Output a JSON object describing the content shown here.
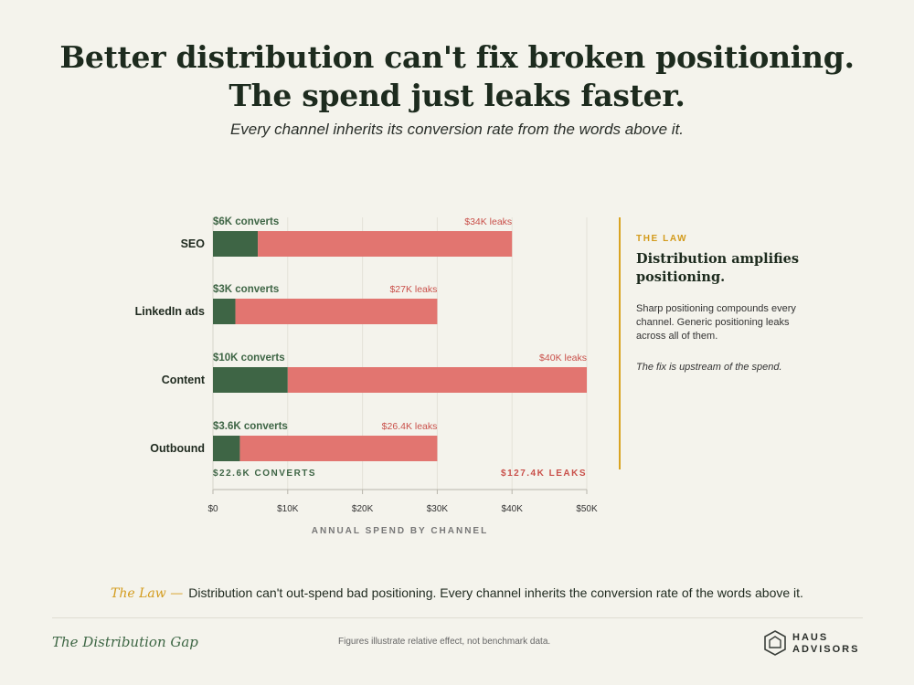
{
  "title_line1": "Better distribution can't fix broken positioning.",
  "title_line2": "The spend just leaks faster.",
  "subtitle": "Every channel inherits its conversion rate from the words above it.",
  "chart_data": {
    "type": "bar",
    "orientation": "horizontal",
    "stacked": true,
    "categories": [
      "SEO",
      "LinkedIn ads",
      "Content",
      "Outbound"
    ],
    "series": [
      {
        "name": "converts",
        "color": "#3e6545",
        "values": [
          6,
          3,
          10,
          3.6
        ],
        "labels": [
          "$6K converts",
          "$3K converts",
          "$10K converts",
          "$3.6K converts"
        ]
      },
      {
        "name": "leaks",
        "color": "#e27570",
        "values": [
          34,
          27,
          40,
          26.4
        ],
        "labels": [
          "$34K leaks",
          "$27K leaks",
          "$40K leaks",
          "$26.4K leaks"
        ]
      }
    ],
    "totals": {
      "converts": "$22.6K CONVERTS",
      "leaks": "$127.4K LEAKS"
    },
    "xlim": [
      0,
      50
    ],
    "xticks": [
      0,
      10,
      20,
      30,
      40,
      50
    ],
    "xtick_labels": [
      "$0",
      "$10K",
      "$20K",
      "$30K",
      "$40K",
      "$50K"
    ],
    "xlabel": "ANNUAL SPEND BY CHANNEL"
  },
  "sidebar": {
    "eyebrow": "THE LAW",
    "heading": "Distribution amplifies positioning.",
    "body": "Sharp positioning compounds every channel. Generic positioning leaks across all of them.",
    "fix": "The fix is upstream of the spend."
  },
  "law": {
    "label": "The Law —",
    "text": "Distribution can't out-spend bad positioning. Every channel inherits the conversion rate of the words above it."
  },
  "footer": {
    "left": "The Distribution Gap",
    "middle": "Figures illustrate relative effect, not benchmark data.",
    "logo_line1": "HAUS",
    "logo_line2": "ADVISORS"
  },
  "colors": {
    "converts": "#3e6545",
    "leaks": "#e27570",
    "accent": "#d39b1c",
    "background": "#f4f3ec"
  }
}
